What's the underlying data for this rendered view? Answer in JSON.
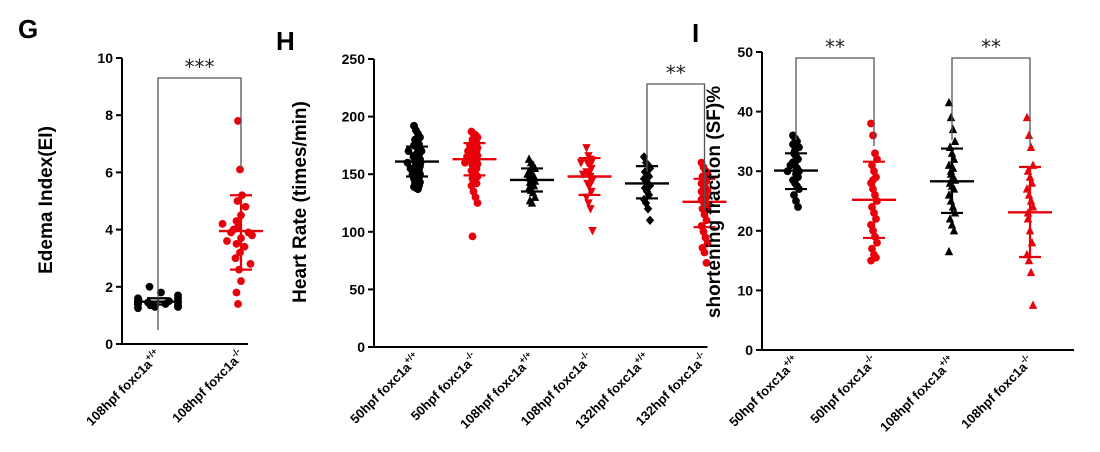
{
  "chart_data": [
    {
      "type": "scatter",
      "panel": "G",
      "ylabel": "Edema Index(EI)",
      "ylim": [
        0,
        10
      ],
      "yticks": [
        "0",
        "2",
        "4",
        "6",
        "8",
        "10"
      ],
      "categories": [
        {
          "base": "108hpf foxc1a",
          "sup": "+/+",
          "color": "#000000",
          "marker": "circle"
        },
        {
          "base": "108hpf foxc1a",
          "sup": "-/-",
          "color": "#e8000b",
          "marker": "circle"
        }
      ],
      "series": [
        {
          "values": [
            1.3,
            1.35,
            1.4,
            1.45,
            1.5,
            1.55,
            1.6,
            1.4,
            1.3,
            1.5,
            1.45,
            1.55,
            1.35,
            1.4,
            1.5,
            1.6,
            1.7,
            1.8,
            2.0,
            1.25,
            1.3,
            1.4,
            1.5,
            1.45
          ],
          "mean": 1.48,
          "sd_low": 1.38,
          "sd_high": 1.6
        },
        {
          "values": [
            7.8,
            6.1,
            5.2,
            5.0,
            4.8,
            4.5,
            4.3,
            4.1,
            4.0,
            3.9,
            3.9,
            3.8,
            3.7,
            3.5,
            3.4,
            3.2,
            3.0,
            2.8,
            2.6,
            2.2,
            1.8,
            1.4,
            3.6,
            4.2
          ],
          "mean": 3.95,
          "sd_low": 2.6,
          "sd_high": 5.2
        }
      ],
      "significance": [
        {
          "label": "***",
          "from": 0,
          "to": 1
        }
      ]
    },
    {
      "type": "scatter",
      "panel": "H",
      "ylabel": "Heart Rate (times/min)",
      "ylim": [
        0,
        250
      ],
      "yticks": [
        "0",
        "50",
        "100",
        "150",
        "200",
        "250"
      ],
      "categories": [
        {
          "base": "50hpf foxc1a",
          "sup": "+/+",
          "color": "#000000",
          "marker": "circle"
        },
        {
          "base": "50hpf foxc1a",
          "sup": "-/-",
          "color": "#e8000b",
          "marker": "circle"
        },
        {
          "base": "108hpf foxc1a",
          "sup": "+/+",
          "color": "#000000",
          "marker": "triangle"
        },
        {
          "base": "108hpf foxc1a",
          "sup": "-/-",
          "color": "#e8000b",
          "marker": "triangle-down"
        },
        {
          "base": "132hpf foxc1a",
          "sup": "+/+",
          "color": "#000000",
          "marker": "diamond"
        },
        {
          "base": "132hpf foxc1a",
          "sup": "-/-",
          "color": "#e8000b",
          "marker": "circle"
        }
      ],
      "series": [
        {
          "values": [
            192,
            188,
            185,
            182,
            180,
            178,
            176,
            175,
            174,
            172,
            170,
            170,
            168,
            167,
            166,
            165,
            164,
            163,
            162,
            161,
            160,
            160,
            159,
            158,
            157,
            156,
            155,
            154,
            153,
            152,
            151,
            150,
            149,
            148,
            147,
            146,
            145,
            144,
            143,
            142,
            141,
            140,
            139,
            138,
            137,
            165,
            170,
            155,
            150,
            160
          ],
          "mean": 161,
          "sd_low": 148,
          "sd_high": 174
        },
        {
          "values": [
            187,
            185,
            184,
            182,
            180,
            178,
            177,
            176,
            175,
            174,
            173,
            172,
            171,
            170,
            169,
            168,
            167,
            166,
            165,
            164,
            163,
            162,
            161,
            160,
            159,
            158,
            157,
            155,
            153,
            151,
            150,
            148,
            146,
            144,
            142,
            140,
            135,
            130,
            125,
            96,
            170,
            175,
            160,
            165
          ],
          "mean": 163,
          "sd_low": 149,
          "sd_high": 177
        },
        {
          "values": [
            163,
            160,
            158,
            155,
            153,
            150,
            148,
            147,
            146,
            145,
            144,
            143,
            142,
            140,
            138,
            136,
            134,
            130,
            127,
            125,
            150,
            152
          ],
          "mean": 145,
          "sd_low": 135,
          "sd_high": 155
        },
        {
          "values": [
            173,
            166,
            163,
            162,
            160,
            158,
            155,
            152,
            150,
            148,
            145,
            142,
            140,
            135,
            130,
            125,
            120,
            101,
            160,
            150
          ],
          "mean": 148,
          "sd_low": 132,
          "sd_high": 164
        },
        {
          "values": [
            165,
            160,
            158,
            155,
            152,
            150,
            148,
            146,
            144,
            142,
            140,
            138,
            135,
            132,
            128,
            125,
            120,
            110
          ],
          "mean": 142,
          "sd_low": 129,
          "sd_high": 157
        },
        {
          "values": [
            160,
            156,
            153,
            150,
            148,
            146,
            144,
            142,
            140,
            138,
            136,
            134,
            132,
            130,
            128,
            126,
            124,
            122,
            120,
            115,
            110,
            105,
            100,
            95,
            90,
            86,
            82,
            73,
            135,
            145
          ],
          "mean": 126,
          "sd_low": 104,
          "sd_high": 146
        }
      ],
      "significance": [
        {
          "label": "**",
          "from": 4,
          "to": 5
        }
      ]
    },
    {
      "type": "scatter",
      "panel": "I",
      "ylabel": "shortening fraction (SF)%",
      "ylim": [
        0,
        50
      ],
      "yticks": [
        "0",
        "10",
        "20",
        "30",
        "40",
        "50"
      ],
      "categories": [
        {
          "base": "50hpf foxc1a",
          "sup": "+/+",
          "color": "#000000",
          "marker": "circle"
        },
        {
          "base": "50hpf foxc1a",
          "sup": "-/-",
          "color": "#e8000b",
          "marker": "circle"
        },
        {
          "base": "108hpf foxc1a",
          "sup": "+/+",
          "color": "#000000",
          "marker": "triangle"
        },
        {
          "base": "108hpf foxc1a",
          "sup": "-/-",
          "color": "#e8000b",
          "marker": "triangle"
        }
      ],
      "series": [
        {
          "values": [
            36,
            35.5,
            35,
            34,
            33,
            32.5,
            32,
            31.5,
            31,
            30.5,
            30,
            30,
            29.5,
            29,
            28.5,
            28,
            27.5,
            27,
            26,
            25,
            24,
            34.5,
            33.5,
            31
          ],
          "mean": 30.1,
          "sd_low": 27,
          "sd_high": 33
        },
        {
          "values": [
            38,
            36,
            33,
            32,
            31,
            30,
            29,
            28,
            27,
            26,
            25,
            24,
            23,
            22,
            21,
            20,
            19,
            18,
            17,
            16,
            15.5,
            15,
            28.5
          ],
          "mean": 25.2,
          "sd_low": 18.8,
          "sd_high": 31.6
        },
        {
          "values": [
            41.5,
            39,
            37,
            35,
            34,
            33,
            32,
            31,
            30,
            29,
            28.5,
            28,
            27.5,
            27,
            26,
            25,
            24,
            23,
            22,
            21,
            20,
            16.5,
            29.5,
            30.5
          ],
          "mean": 28.3,
          "sd_low": 23,
          "sd_high": 33.8
        },
        {
          "values": [
            39,
            36,
            34,
            31,
            30,
            29,
            28,
            27,
            26,
            25,
            24,
            22,
            20,
            18,
            16,
            15,
            13,
            7.5,
            23
          ],
          "mean": 23.1,
          "sd_low": 15.6,
          "sd_high": 30.7
        }
      ],
      "significance": [
        {
          "label": "**",
          "from": 0,
          "to": 1
        },
        {
          "label": "**",
          "from": 2,
          "to": 3
        }
      ]
    }
  ]
}
